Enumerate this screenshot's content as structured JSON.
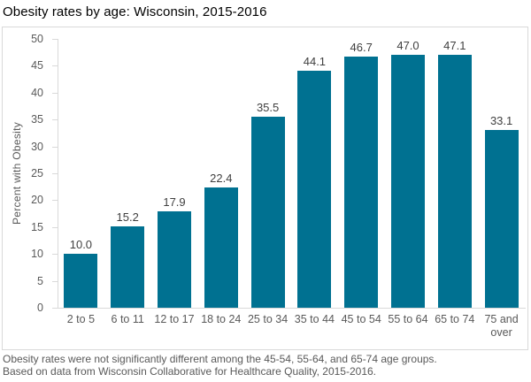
{
  "title": "Obesity rates by age: Wisconsin, 2015-2016",
  "chart_data": {
    "type": "bar",
    "title": "Obesity rates by age: Wisconsin, 2015-2016",
    "categories": [
      "2 to 5",
      "6 to 11",
      "12 to 17",
      "18 to 24",
      "25 to 34",
      "35 to 44",
      "45 to 54",
      "55 to 64",
      "65 to 74",
      "75 and over"
    ],
    "values": [
      10.0,
      15.2,
      17.9,
      22.4,
      35.5,
      44.1,
      46.7,
      47.0,
      47.1,
      33.1
    ],
    "value_labels": [
      "10.0",
      "15.2",
      "17.9",
      "22.4",
      "35.5",
      "44.1",
      "46.7",
      "47.0",
      "47.1",
      "33.1"
    ],
    "xlabel": "",
    "ylabel": "Percent with Obesity",
    "ylim": [
      0,
      50
    ],
    "ytick_step": 5,
    "grid": false,
    "legend": false,
    "colors": {
      "bar": "#007191",
      "axis": "#d9d9d9",
      "tick_label": "#595959",
      "value_label": "#404040",
      "title": "#000000"
    }
  },
  "footnotes": [
    "Obesity rates were not significantly different among the 45-54, 55-64, and 65-74 age groups.",
    "Based on data from Wisconsin Collaborative for Healthcare Quality, 2015-2016."
  ]
}
